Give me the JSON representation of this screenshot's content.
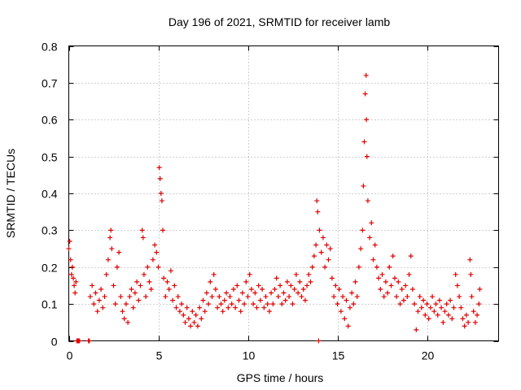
{
  "chart_data": {
    "type": "scatter",
    "title": "Day 196 of 2021, SRMTID for receiver lamb",
    "xlabel": "GPS time / hours",
    "ylabel": "SRMTID / TECUs",
    "xlim": [
      0,
      24
    ],
    "ylim": [
      0,
      0.8
    ],
    "x_ticks": [
      0,
      5,
      10,
      15,
      20
    ],
    "y_ticks": [
      0,
      0.1,
      0.2,
      0.3,
      0.4,
      0.5,
      0.6,
      0.7,
      0.8
    ],
    "x_tick_labels": [
      "0",
      "5",
      "10",
      "15",
      "20"
    ],
    "y_tick_labels": [
      "0",
      "0.1",
      "0.2",
      "0.3",
      "0.4",
      "0.5",
      "0.6",
      "0.7",
      "0.8"
    ],
    "grid": true,
    "marker": "plus",
    "color": "#e00000",
    "series": [
      {
        "name": "SRMTID",
        "points": [
          [
            0.0,
            0.25
          ],
          [
            0.05,
            0.27
          ],
          [
            0.1,
            0.22
          ],
          [
            0.15,
            0.18
          ],
          [
            0.2,
            0.2
          ],
          [
            0.25,
            0.17
          ],
          [
            0.3,
            0.15
          ],
          [
            0.35,
            0.13
          ],
          [
            0.4,
            0.16
          ],
          [
            0.45,
            0.0
          ],
          [
            0.5,
            0.0
          ],
          [
            0.55,
            0.0
          ],
          [
            0.6,
            0.0
          ],
          [
            1.1,
            0.0
          ],
          [
            1.15,
            0.0
          ],
          [
            1.2,
            0.12
          ],
          [
            1.3,
            0.15
          ],
          [
            1.4,
            0.1
          ],
          [
            1.5,
            0.13
          ],
          [
            1.6,
            0.08
          ],
          [
            1.7,
            0.11
          ],
          [
            1.8,
            0.14
          ],
          [
            1.9,
            0.09
          ],
          [
            2.0,
            0.12
          ],
          [
            2.1,
            0.18
          ],
          [
            2.2,
            0.22
          ],
          [
            2.3,
            0.28
          ],
          [
            2.35,
            0.3
          ],
          [
            2.4,
            0.25
          ],
          [
            2.5,
            0.15
          ],
          [
            2.6,
            0.1
          ],
          [
            2.7,
            0.2
          ],
          [
            2.8,
            0.24
          ],
          [
            2.9,
            0.12
          ],
          [
            3.0,
            0.08
          ],
          [
            3.1,
            0.06
          ],
          [
            3.2,
            0.1
          ],
          [
            3.3,
            0.05
          ],
          [
            3.4,
            0.12
          ],
          [
            3.5,
            0.14
          ],
          [
            3.6,
            0.09
          ],
          [
            3.7,
            0.13
          ],
          [
            3.8,
            0.16
          ],
          [
            3.9,
            0.11
          ],
          [
            4.0,
            0.15
          ],
          [
            4.1,
            0.3
          ],
          [
            4.15,
            0.28
          ],
          [
            4.2,
            0.18
          ],
          [
            4.3,
            0.12
          ],
          [
            4.4,
            0.2
          ],
          [
            4.5,
            0.16
          ],
          [
            4.6,
            0.14
          ],
          [
            4.7,
            0.22
          ],
          [
            4.8,
            0.26
          ],
          [
            4.9,
            0.24
          ],
          [
            5.0,
            0.2
          ],
          [
            5.05,
            0.47
          ],
          [
            5.1,
            0.44
          ],
          [
            5.15,
            0.4
          ],
          [
            5.2,
            0.38
          ],
          [
            5.25,
            0.3
          ],
          [
            5.3,
            0.17
          ],
          [
            5.4,
            0.12
          ],
          [
            5.5,
            0.16
          ],
          [
            5.6,
            0.14
          ],
          [
            5.7,
            0.19
          ],
          [
            5.8,
            0.11
          ],
          [
            5.9,
            0.15
          ],
          [
            6.0,
            0.09
          ],
          [
            6.1,
            0.12
          ],
          [
            6.2,
            0.08
          ],
          [
            6.3,
            0.1
          ],
          [
            6.4,
            0.07
          ],
          [
            6.5,
            0.05
          ],
          [
            6.6,
            0.09
          ],
          [
            6.7,
            0.06
          ],
          [
            6.8,
            0.04
          ],
          [
            6.9,
            0.08
          ],
          [
            7.0,
            0.05
          ],
          [
            7.1,
            0.07
          ],
          [
            7.2,
            0.04
          ],
          [
            7.3,
            0.09
          ],
          [
            7.4,
            0.06
          ],
          [
            7.5,
            0.11
          ],
          [
            7.6,
            0.08
          ],
          [
            7.7,
            0.13
          ],
          [
            7.8,
            0.1
          ],
          [
            7.9,
            0.16
          ],
          [
            8.0,
            0.12
          ],
          [
            8.1,
            0.18
          ],
          [
            8.2,
            0.14
          ],
          [
            8.3,
            0.09
          ],
          [
            8.4,
            0.12
          ],
          [
            8.5,
            0.1
          ],
          [
            8.6,
            0.08
          ],
          [
            8.7,
            0.11
          ],
          [
            8.8,
            0.13
          ],
          [
            8.9,
            0.09
          ],
          [
            9.0,
            0.12
          ],
          [
            9.1,
            0.1
          ],
          [
            9.2,
            0.14
          ],
          [
            9.3,
            0.09
          ],
          [
            9.4,
            0.15
          ],
          [
            9.5,
            0.11
          ],
          [
            9.6,
            0.08
          ],
          [
            9.7,
            0.13
          ],
          [
            9.8,
            0.1
          ],
          [
            9.9,
            0.16
          ],
          [
            10.0,
            0.12
          ],
          [
            10.1,
            0.18
          ],
          [
            10.2,
            0.14
          ],
          [
            10.3,
            0.1
          ],
          [
            10.4,
            0.13
          ],
          [
            10.5,
            0.09
          ],
          [
            10.6,
            0.15
          ],
          [
            10.7,
            0.11
          ],
          [
            10.8,
            0.14
          ],
          [
            10.9,
            0.09
          ],
          [
            11.0,
            0.12
          ],
          [
            11.1,
            0.1
          ],
          [
            11.2,
            0.08
          ],
          [
            11.3,
            0.13
          ],
          [
            11.4,
            0.1
          ],
          [
            11.5,
            0.14
          ],
          [
            11.6,
            0.17
          ],
          [
            11.7,
            0.12
          ],
          [
            11.8,
            0.15
          ],
          [
            11.9,
            0.1
          ],
          [
            12.0,
            0.13
          ],
          [
            12.1,
            0.11
          ],
          [
            12.2,
            0.16
          ],
          [
            12.3,
            0.12
          ],
          [
            12.4,
            0.15
          ],
          [
            12.5,
            0.1
          ],
          [
            12.6,
            0.14
          ],
          [
            12.7,
            0.18
          ],
          [
            12.8,
            0.13
          ],
          [
            12.9,
            0.16
          ],
          [
            13.0,
            0.12
          ],
          [
            13.1,
            0.14
          ],
          [
            13.2,
            0.11
          ],
          [
            13.3,
            0.15
          ],
          [
            13.4,
            0.18
          ],
          [
            13.5,
            0.16
          ],
          [
            13.6,
            0.2
          ],
          [
            13.7,
            0.23
          ],
          [
            13.8,
            0.26
          ],
          [
            13.85,
            0.38
          ],
          [
            13.9,
            0.35
          ],
          [
            13.95,
            0.0
          ],
          [
            14.0,
            0.3
          ],
          [
            14.1,
            0.24
          ],
          [
            14.2,
            0.28
          ],
          [
            14.3,
            0.2
          ],
          [
            14.4,
            0.26
          ],
          [
            14.5,
            0.22
          ],
          [
            14.6,
            0.25
          ],
          [
            14.7,
            0.17
          ],
          [
            14.8,
            0.12
          ],
          [
            14.9,
            0.15
          ],
          [
            15.0,
            0.1
          ],
          [
            15.1,
            0.14
          ],
          [
            15.2,
            0.08
          ],
          [
            15.3,
            0.12
          ],
          [
            15.4,
            0.06
          ],
          [
            15.5,
            0.11
          ],
          [
            15.6,
            0.04
          ],
          [
            15.7,
            0.09
          ],
          [
            15.8,
            0.13
          ],
          [
            15.9,
            0.1
          ],
          [
            16.0,
            0.16
          ],
          [
            16.1,
            0.12
          ],
          [
            16.2,
            0.2
          ],
          [
            16.3,
            0.25
          ],
          [
            16.4,
            0.3
          ],
          [
            16.45,
            0.42
          ],
          [
            16.5,
            0.54
          ],
          [
            16.55,
            0.67
          ],
          [
            16.6,
            0.72
          ],
          [
            16.62,
            0.6
          ],
          [
            16.65,
            0.5
          ],
          [
            16.7,
            0.38
          ],
          [
            16.8,
            0.28
          ],
          [
            16.9,
            0.32
          ],
          [
            17.0,
            0.22
          ],
          [
            17.1,
            0.26
          ],
          [
            17.2,
            0.2
          ],
          [
            17.3,
            0.17
          ],
          [
            17.4,
            0.14
          ],
          [
            17.5,
            0.18
          ],
          [
            17.6,
            0.12
          ],
          [
            17.7,
            0.16
          ],
          [
            17.8,
            0.13
          ],
          [
            17.9,
            0.2
          ],
          [
            18.0,
            0.15
          ],
          [
            18.1,
            0.23
          ],
          [
            18.2,
            0.17
          ],
          [
            18.3,
            0.12
          ],
          [
            18.4,
            0.16
          ],
          [
            18.5,
            0.1
          ],
          [
            18.6,
            0.14
          ],
          [
            18.7,
            0.11
          ],
          [
            18.8,
            0.15
          ],
          [
            18.9,
            0.12
          ],
          [
            19.0,
            0.18
          ],
          [
            19.1,
            0.23
          ],
          [
            19.2,
            0.14
          ],
          [
            19.3,
            0.1
          ],
          [
            19.4,
            0.03
          ],
          [
            19.5,
            0.08
          ],
          [
            19.6,
            0.12
          ],
          [
            19.7,
            0.09
          ],
          [
            19.8,
            0.11
          ],
          [
            19.9,
            0.07
          ],
          [
            20.0,
            0.1
          ],
          [
            20.1,
            0.06
          ],
          [
            20.2,
            0.09
          ],
          [
            20.3,
            0.12
          ],
          [
            20.4,
            0.08
          ],
          [
            20.5,
            0.1
          ],
          [
            20.6,
            0.07
          ],
          [
            20.7,
            0.11
          ],
          [
            20.8,
            0.09
          ],
          [
            20.9,
            0.05
          ],
          [
            21.0,
            0.08
          ],
          [
            21.1,
            0.1
          ],
          [
            21.2,
            0.07
          ],
          [
            21.3,
            0.11
          ],
          [
            21.4,
            0.06
          ],
          [
            21.5,
            0.09
          ],
          [
            21.6,
            0.18
          ],
          [
            21.7,
            0.15
          ],
          [
            21.8,
            0.12
          ],
          [
            21.9,
            0.09
          ],
          [
            22.0,
            0.06
          ],
          [
            22.1,
            0.04
          ],
          [
            22.2,
            0.07
          ],
          [
            22.3,
            0.05
          ],
          [
            22.4,
            0.22
          ],
          [
            22.45,
            0.18
          ],
          [
            22.5,
            0.12
          ],
          [
            22.6,
            0.08
          ],
          [
            22.7,
            0.05
          ],
          [
            22.8,
            0.07
          ],
          [
            22.9,
            0.1
          ],
          [
            22.95,
            0.14
          ]
        ]
      }
    ]
  }
}
